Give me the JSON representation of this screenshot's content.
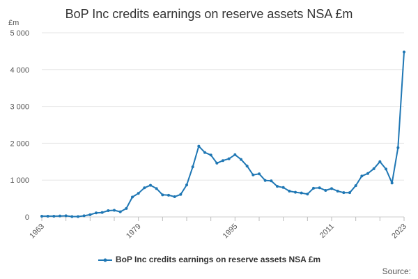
{
  "chart_data": {
    "type": "line",
    "title": "BoP Inc credits earnings on reserve assets NSA £m",
    "ylabel": "£m",
    "xlabel": "",
    "ylim": [
      0,
      5000
    ],
    "xlim": [
      1963,
      2023
    ],
    "y_ticks": [
      0,
      1000,
      2000,
      3000,
      4000,
      5000
    ],
    "y_tick_labels": [
      "0",
      "1 000",
      "2 000",
      "3 000",
      "4 000",
      "5 000"
    ],
    "x_ticks": [
      1963,
      1979,
      1995,
      2011,
      2023
    ],
    "x_tick_labels": [
      "1963",
      "1979",
      "1995",
      "2011",
      "2023"
    ],
    "grid": true,
    "legend_position": "bottom",
    "color": "#1f77b4",
    "series": [
      {
        "name": "BoP Inc credits earnings on reserve assets NSA £m",
        "x": [
          1963,
          1964,
          1965,
          1966,
          1967,
          1968,
          1969,
          1970,
          1971,
          1972,
          1973,
          1974,
          1975,
          1976,
          1977,
          1978,
          1979,
          1980,
          1981,
          1982,
          1983,
          1984,
          1985,
          1986,
          1987,
          1988,
          1989,
          1990,
          1991,
          1992,
          1993,
          1994,
          1995,
          1996,
          1997,
          1998,
          1999,
          2000,
          2001,
          2002,
          2003,
          2004,
          2005,
          2006,
          2007,
          2008,
          2009,
          2010,
          2011,
          2012,
          2013,
          2014,
          2015,
          2016,
          2017,
          2018,
          2019,
          2020,
          2021,
          2022,
          2023
        ],
        "values": [
          20,
          20,
          20,
          25,
          30,
          10,
          10,
          30,
          60,
          110,
          120,
          170,
          180,
          140,
          230,
          540,
          640,
          790,
          860,
          770,
          600,
          590,
          550,
          610,
          870,
          1360,
          1920,
          1750,
          1680,
          1460,
          1530,
          1580,
          1690,
          1560,
          1380,
          1140,
          1170,
          990,
          980,
          830,
          800,
          700,
          670,
          650,
          620,
          780,
          790,
          720,
          770,
          700,
          660,
          660,
          850,
          1110,
          1180,
          1310,
          1500,
          1300,
          920,
          1880,
          4480
        ]
      }
    ]
  },
  "legend": {
    "label": "BoP Inc credits earnings on reserve assets NSA £m"
  },
  "source_label": "Source:"
}
